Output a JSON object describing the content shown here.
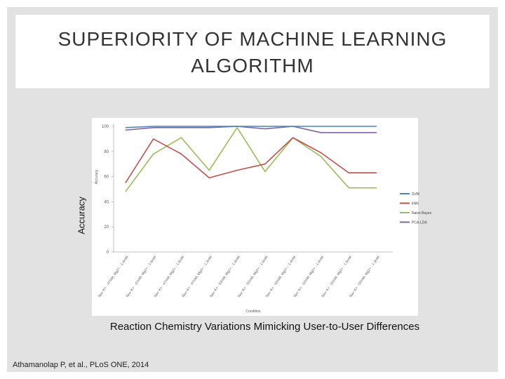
{
  "slide": {
    "title": "SUPERIORITY OF MACHINE LEARNING\nALGORITHM",
    "y_axis_overlay": "Accuracy",
    "caption": "Reaction Chemistry Variations Mimicking User-to-User Differences",
    "citation": "Athamanolap P, et al., PLoS ONE, 2014"
  },
  "colors": {
    "background": "#e2e2e2",
    "SVM": "#4f81bd",
    "kNN": "#c0504d",
    "Naive Bayes": "#9bbb59",
    "PCA-LDA": "#8064a2"
  },
  "chart_data": {
    "type": "line",
    "ylabel": "Accuracy",
    "xlabel": "Condition",
    "ylim": [
      0,
      100
    ],
    "yticks": [
      0,
      20,
      40,
      60,
      80,
      100
    ],
    "grid": false,
    "legend_position": "right",
    "categories": [
      "Na+ K+ - 47mM, Mg2+ - 1.4mM",
      "Na+ K+ - 47mM, Mg2+ - 1.5mM",
      "Na+ K+ - 47mM, Mg2+ - 1.5mM",
      "Na+ K+ - 47mM, Mg2+ - 1.3mM",
      "Na+ K+ - 52mM, Mg2+ - 1.4mM",
      "Na+ K+ - 52mM, Mg2+ - 1.5mM",
      "Na+ K+ - 52mM, Mg2+ - 1.4mM",
      "Na+ K+ - 52mM, Mg2+ - 1.4mM",
      "Na+ K+ - 52mM, Mg2+ - 1.5mM",
      "Na+ K+ - 52mM, Mg2+ - 1.3mM"
    ],
    "series": [
      {
        "name": "SVM",
        "values": [
          99,
          100,
          100,
          100,
          100,
          100,
          100,
          100,
          100,
          100
        ]
      },
      {
        "name": "kNN",
        "values": [
          55,
          90,
          78,
          59,
          65,
          70,
          91,
          79,
          63,
          63
        ]
      },
      {
        "name": "Naive Bayes",
        "values": [
          48,
          78,
          91,
          65,
          99,
          64,
          91,
          76,
          51,
          51
        ]
      },
      {
        "name": "PCA-LDA",
        "values": [
          97,
          99,
          99,
          99,
          100,
          98,
          100,
          95,
          95,
          95
        ]
      }
    ],
    "n_points": [
      10,
      9,
      9,
      9,
      9,
      9,
      9,
      9,
      9,
      9
    ]
  }
}
